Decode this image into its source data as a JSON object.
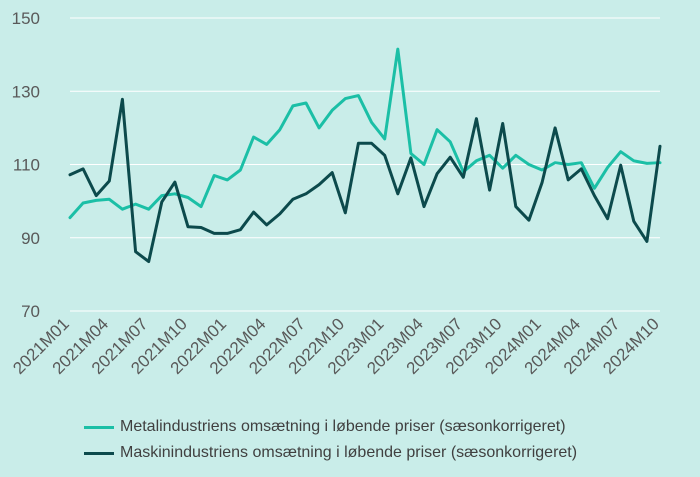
{
  "chart_data": {
    "type": "line",
    "ylim": [
      70,
      150
    ],
    "yticks": [
      70,
      90,
      110,
      130,
      150
    ],
    "grid": true,
    "legend_position": "bottom",
    "x": [
      "2021M01",
      "2021M02",
      "2021M03",
      "2021M04",
      "2021M05",
      "2021M06",
      "2021M07",
      "2021M08",
      "2021M09",
      "2021M10",
      "2021M11",
      "2021M12",
      "2022M01",
      "2022M02",
      "2022M03",
      "2022M04",
      "2022M05",
      "2022M06",
      "2022M07",
      "2022M08",
      "2022M09",
      "2022M10",
      "2022M11",
      "2022M12",
      "2023M01",
      "2023M02",
      "2023M03",
      "2023M04",
      "2023M05",
      "2023M06",
      "2023M07",
      "2023M08",
      "2023M09",
      "2023M10",
      "2023M11",
      "2023M12",
      "2024M01",
      "2024M02",
      "2024M03",
      "2024M04",
      "2024M05",
      "2024M06",
      "2024M07",
      "2024M08",
      "2024M09",
      "2024M10"
    ],
    "xtick_labels": [
      "2021M01",
      "2021M04",
      "2021M07",
      "2021M10",
      "2022M01",
      "2022M04",
      "2022M07",
      "2022M10",
      "2023M01",
      "2023M04",
      "2023M07",
      "2023M10",
      "2024M01",
      "2024M04",
      "2024M07",
      "2024M10"
    ],
    "series": [
      {
        "name": "Metalindustriens omsætning i løbende priser (sæsonkorrigeret)",
        "color": "#1bbfa6",
        "values": [
          95.5,
          99.5,
          100.2,
          100.5,
          97.8,
          99.2,
          97.8,
          101.5,
          102.0,
          101.0,
          98.5,
          107.0,
          105.8,
          108.5,
          117.5,
          115.5,
          119.5,
          126.0,
          126.8,
          120.0,
          124.8,
          128.0,
          128.8,
          121.5,
          117.0,
          141.5,
          113.0,
          110.0,
          119.5,
          116.2,
          108.0,
          111.0,
          112.5,
          109.0,
          112.5,
          110.0,
          108.5,
          110.5,
          110.0,
          110.5,
          103.5,
          109.2,
          113.5,
          111.0,
          110.3,
          110.5
        ]
      },
      {
        "name": "Maskinindustriens omsætning i løbende priser (sæsonkorrigeret)",
        "color": "#0c4a4c",
        "values": [
          107.2,
          108.8,
          101.5,
          105.5,
          127.8,
          86.2,
          83.5,
          99.8,
          105.2,
          93.0,
          92.8,
          91.2,
          91.2,
          92.2,
          97.0,
          93.5,
          96.5,
          100.5,
          102.0,
          104.5,
          107.8,
          96.8,
          115.8,
          115.8,
          112.5,
          102.0,
          111.8,
          98.5,
          107.5,
          112.0,
          106.5,
          122.5,
          103.0,
          121.2,
          98.5,
          94.8,
          105.0,
          120.0,
          105.8,
          108.8,
          101.5,
          95.2,
          109.8,
          94.5,
          89.0,
          115.0
        ]
      }
    ]
  }
}
